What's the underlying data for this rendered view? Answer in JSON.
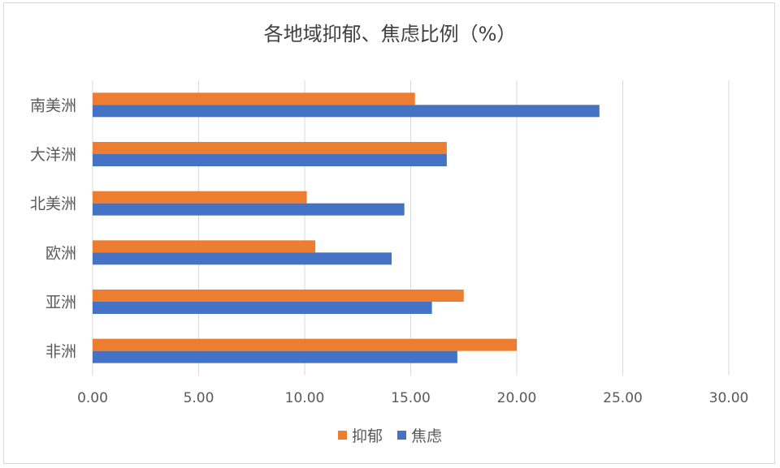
{
  "chart_data": {
    "type": "bar",
    "orientation": "horizontal",
    "title": "各地域抑郁、焦虑比例（%）",
    "categories": [
      "南美洲",
      "大洋洲",
      "北美洲",
      "欧洲",
      "亚洲",
      "非洲"
    ],
    "series": [
      {
        "name": "抑郁",
        "color": "#ED7D31",
        "values": [
          15.2,
          16.7,
          10.1,
          10.5,
          17.5,
          20.0
        ]
      },
      {
        "name": "焦虑",
        "color": "#4472C4",
        "values": [
          23.9,
          16.7,
          14.7,
          14.1,
          16.0,
          17.2
        ]
      }
    ],
    "xlim": [
      0,
      30
    ],
    "xticks": [
      "0.00",
      "5.00",
      "10.00",
      "15.00",
      "20.00",
      "25.00",
      "30.00"
    ],
    "grid": true,
    "legend_position": "bottom"
  }
}
